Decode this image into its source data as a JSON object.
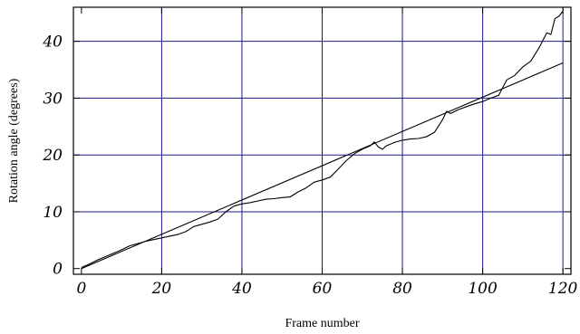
{
  "chart_data": {
    "type": "line",
    "title": "",
    "xlabel": "Frame number",
    "ylabel": "Rotation angle (degrees)",
    "xlim": [
      -2,
      122
    ],
    "ylim": [
      -1,
      46
    ],
    "xticks": [
      0,
      20,
      40,
      60,
      80,
      100,
      120
    ],
    "yticks": [
      0,
      10,
      20,
      30,
      40
    ],
    "x_tick_labels": [
      "0",
      "20",
      "40",
      "60",
      "80",
      "100",
      "120"
    ],
    "y_tick_labels": [
      "0",
      "10",
      "20",
      "30",
      "40"
    ],
    "grid": true,
    "legend": "none",
    "colors": {
      "grid": "#1a1a8c",
      "series": "#000000",
      "axes": "#000000"
    },
    "series": [
      {
        "x": [
          0,
          2,
          4,
          6,
          8,
          10,
          12,
          14,
          16,
          18,
          20,
          22,
          24,
          26,
          28,
          30,
          32,
          34,
          36,
          38,
          40,
          42,
          44,
          46,
          48,
          50,
          52,
          54,
          56,
          58,
          60,
          62,
          64,
          66,
          68,
          70,
          72,
          73,
          74,
          75,
          76,
          78,
          80,
          82,
          84,
          86,
          88,
          90,
          91,
          92,
          94,
          96,
          98,
          100,
          102,
          104,
          106,
          108,
          110,
          112,
          114,
          116,
          117,
          118,
          119,
          120
        ],
        "y": [
          0.2,
          0.8,
          1.5,
          2.1,
          2.7,
          3.3,
          4.0,
          4.4,
          4.8,
          5.1,
          5.4,
          5.7,
          6.0,
          6.5,
          7.4,
          7.8,
          8.2,
          8.7,
          10.0,
          11.0,
          11.4,
          11.6,
          11.9,
          12.2,
          12.3,
          12.5,
          12.6,
          13.5,
          14.2,
          15.2,
          15.6,
          16.1,
          17.5,
          19.0,
          20.2,
          21.0,
          21.6,
          22.3,
          21.4,
          21.0,
          21.6,
          22.2,
          22.6,
          22.8,
          22.9,
          23.2,
          24.0,
          26.2,
          27.7,
          27.3,
          28.0,
          28.5,
          29.0,
          29.4,
          30.0,
          30.5,
          33.2,
          34.0,
          35.5,
          36.5,
          38.8,
          41.5,
          41.2,
          44.0,
          44.4,
          45.3
        ]
      },
      {
        "x": [
          0,
          120
        ],
        "y": [
          0,
          36.2
        ]
      }
    ]
  }
}
